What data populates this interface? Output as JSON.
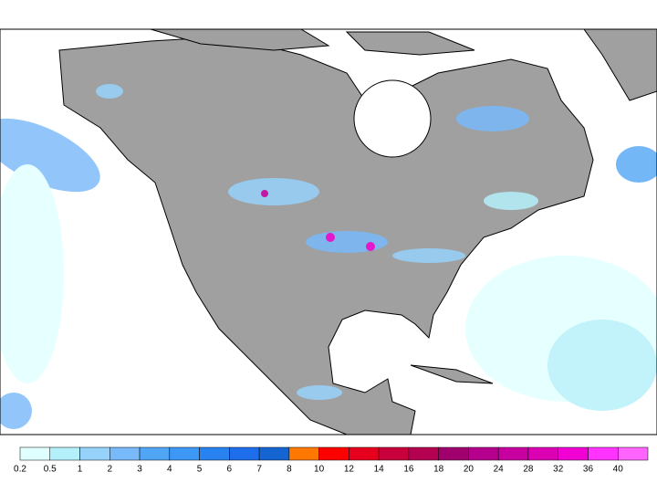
{
  "colorbar": {
    "colors": [
      "#e0ffff",
      "#b4f0fa",
      "#96d2fa",
      "#78b9fa",
      "#50a5f5",
      "#3c97f5",
      "#2883f0",
      "#1e6eeb",
      "#1464d2",
      "#ff7800",
      "#ff0000",
      "#e6001e",
      "#c8003c",
      "#b40050",
      "#a0006e",
      "#b4008c",
      "#c800a0",
      "#dc00b4",
      "#f000d2",
      "#ff32ff",
      "#ff64ff"
    ],
    "labels": [
      0.2,
      0.5,
      1,
      2,
      3,
      4,
      5,
      6,
      7,
      8,
      10,
      12,
      14,
      16,
      18,
      20,
      24,
      28,
      32,
      36,
      40
    ]
  }
}
